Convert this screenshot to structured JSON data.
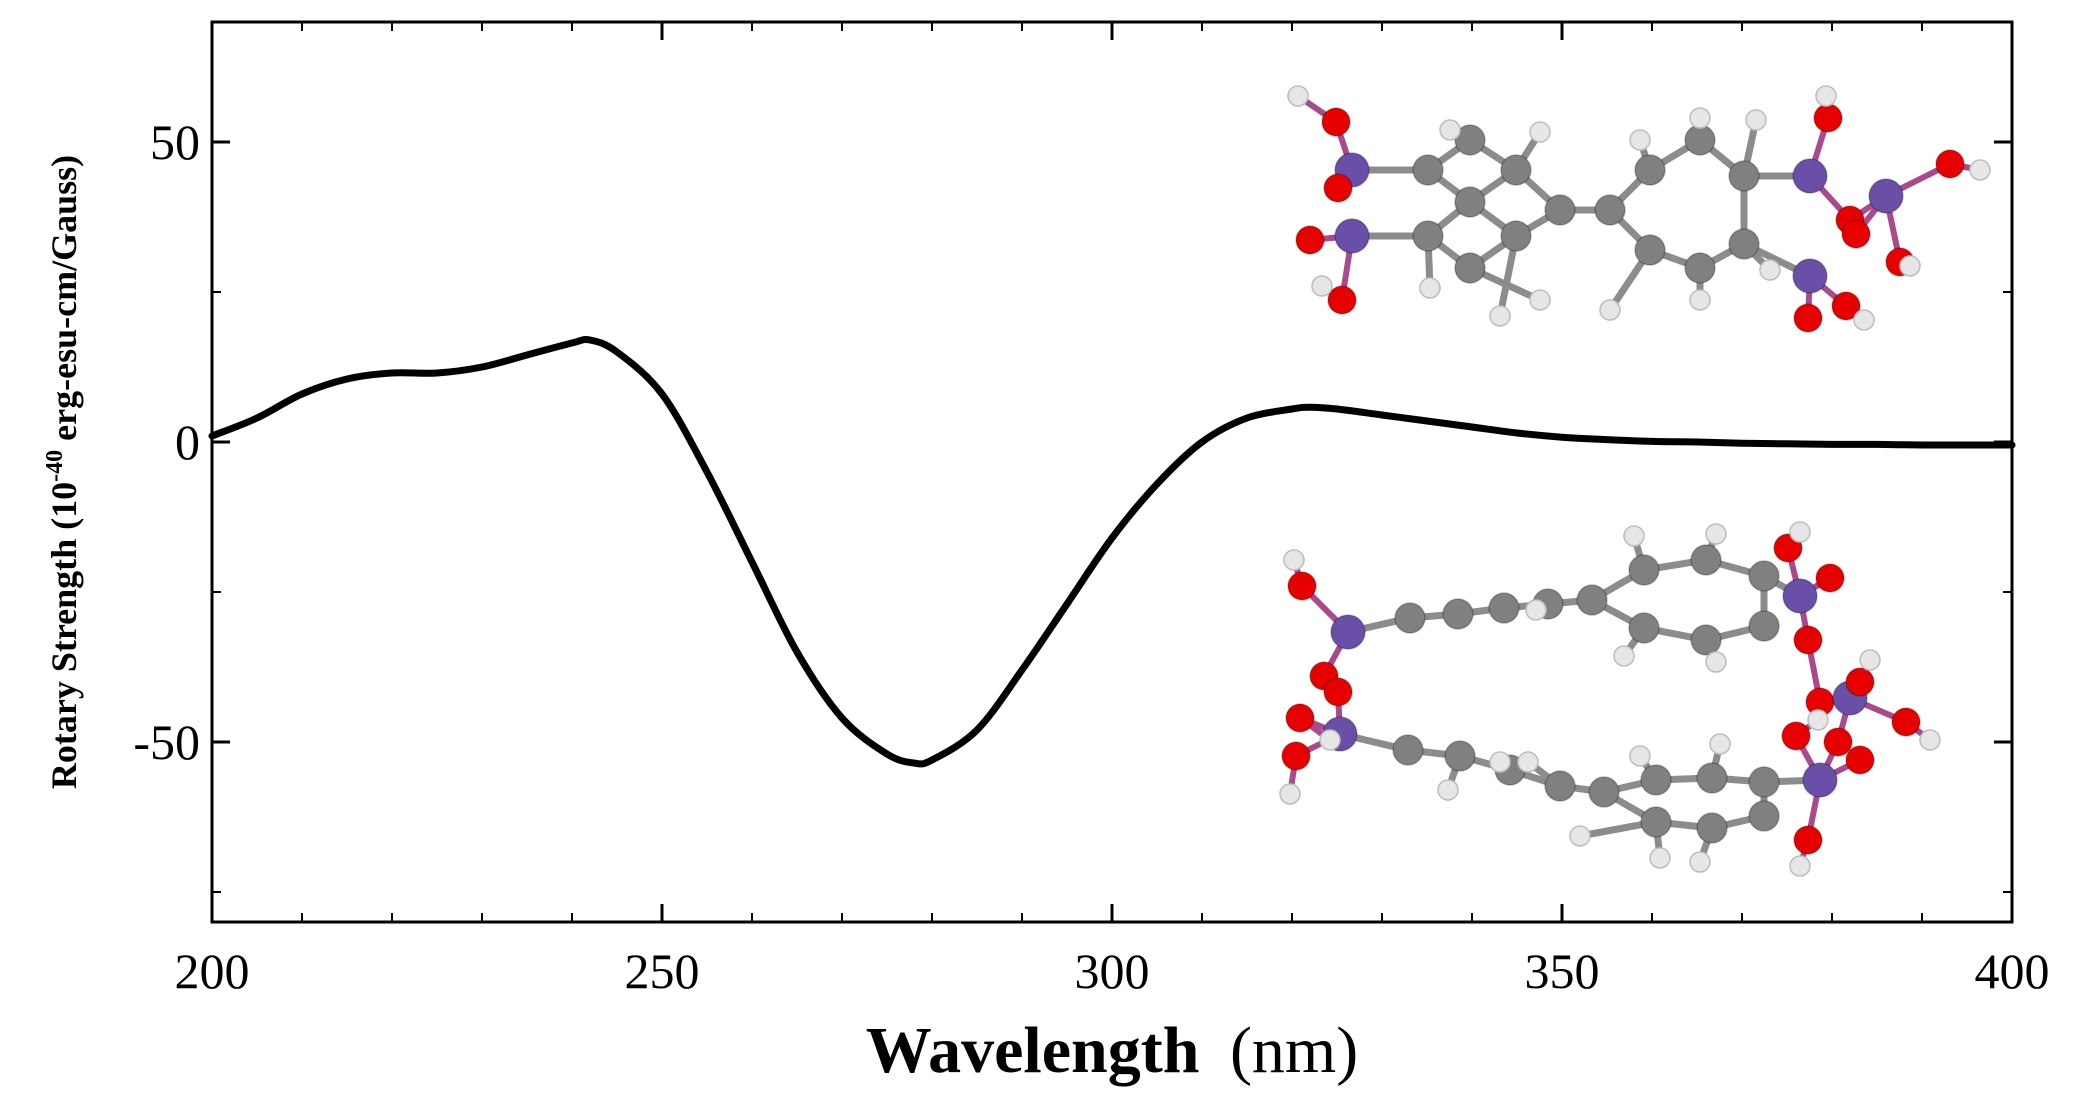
{
  "chart_data": {
    "type": "line",
    "title": "",
    "xlabel": "Wavelength",
    "xlabel_unit": "(nm)",
    "ylabel": "Rotary Strength (10",
    "ylabel_exp": "-40",
    "ylabel_unit": " erg-esu-cm/Gauss)",
    "xlim": [
      200,
      400
    ],
    "ylim": [
      -80,
      70
    ],
    "x_ticks": [
      200,
      250,
      300,
      350,
      400
    ],
    "x_tick_labels": [
      "200",
      "250",
      "300",
      "350",
      "400"
    ],
    "y_ticks": [
      50,
      0,
      -50
    ],
    "y_tick_labels": [
      "50",
      "0",
      "-50"
    ],
    "grid": false,
    "legend": "none",
    "series": [
      {
        "color": "#000000",
        "x": [
          200,
          205,
          210,
          215,
          220,
          225,
          230,
          235,
          240,
          242,
          245,
          250,
          255,
          260,
          265,
          270,
          275,
          278,
          280,
          285,
          290,
          295,
          300,
          305,
          310,
          315,
          320,
          322,
          325,
          330,
          335,
          340,
          345,
          350,
          355,
          360,
          365,
          370,
          375,
          380,
          385,
          390,
          395,
          400
        ],
        "y": [
          1,
          4,
          8,
          10.5,
          11.5,
          11.5,
          12.5,
          14.5,
          16.5,
          17,
          15,
          8,
          -5,
          -20,
          -35,
          -46,
          -52,
          -53.5,
          -53,
          -48,
          -38,
          -27,
          -16,
          -7,
          0,
          4,
          5.5,
          5.8,
          5.5,
          4.5,
          3.5,
          2.5,
          1.5,
          0.8,
          0.4,
          0.1,
          0,
          -0.2,
          -0.3,
          -0.4,
          -0.4,
          -0.5,
          -0.5,
          -0.5
        ]
      }
    ]
  },
  "insets": {
    "top_molecule": "molecule-model-top",
    "bottom_molecule": "molecule-model-bottom",
    "colors": {
      "oxygen": "#e60000",
      "phosphorus": "#6a4fa8",
      "carbon": "#808080",
      "hydrogen": "#e6e6e6"
    }
  }
}
